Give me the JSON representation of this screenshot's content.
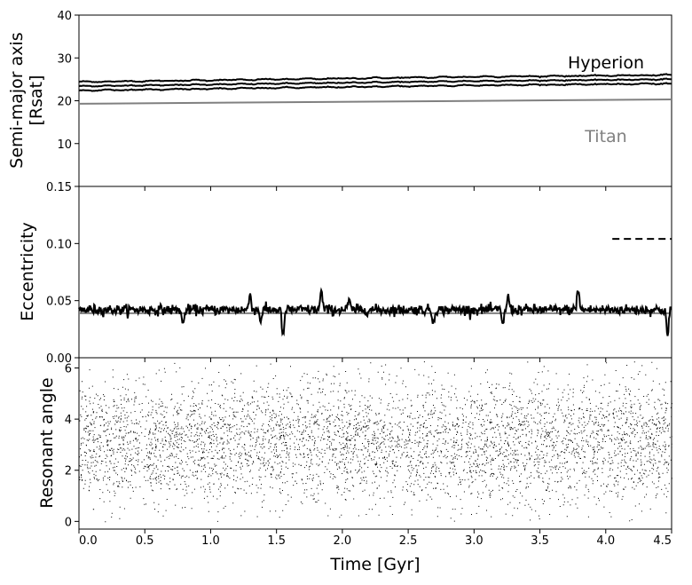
{
  "chart_data": [
    {
      "type": "line",
      "panel": "top",
      "ylabel_line1": "Semi-major axis",
      "ylabel_line2": "[Rsat]",
      "xlim": [
        0.0,
        4.5
      ],
      "ylim": [
        0,
        40
      ],
      "yticks": [
        "10",
        "20",
        "30",
        "40"
      ],
      "grid": false,
      "series": [
        {
          "name": "Hyperion",
          "color": "#000000",
          "style": "solid",
          "x": [
            0.0,
            1.5,
            3.0,
            4.5
          ],
          "center": [
            23.4,
            24.0,
            24.6,
            25.0
          ],
          "band_halfwidth": 1.0
        },
        {
          "name": "Titan",
          "color": "#808080",
          "style": "solid",
          "x": [
            0.0,
            4.5
          ],
          "y": [
            19.3,
            20.3
          ]
        }
      ]
    },
    {
      "type": "line",
      "panel": "middle",
      "ylabel": "Eccentricity",
      "xlim": [
        0.0,
        4.5
      ],
      "ylim": [
        0.0,
        0.15
      ],
      "yticks": [
        "0.00",
        "0.05",
        "0.10",
        "0.15"
      ],
      "grid": false,
      "series": [
        {
          "name": "Hyperion",
          "color": "#000000",
          "style": "solid",
          "mean": 0.042,
          "spikes": [
            [
              0.79,
              -0.014
            ],
            [
              1.3,
              0.014
            ],
            [
              1.38,
              -0.009
            ],
            [
              1.55,
              -0.024
            ],
            [
              1.84,
              0.016
            ],
            [
              2.05,
              0.008
            ],
            [
              2.69,
              -0.012
            ],
            [
              3.22,
              -0.012
            ],
            [
              3.26,
              0.012
            ],
            [
              3.79,
              0.018
            ],
            [
              4.47,
              -0.023
            ]
          ]
        },
        {
          "name": "Titan",
          "color": "#808080",
          "style": "solid",
          "x": [
            0.0,
            4.5
          ],
          "y": [
            0.039,
            0.039
          ]
        },
        {
          "name": "reference",
          "color": "#000000",
          "style": "dashed",
          "x": [
            4.05,
            4.5
          ],
          "y": [
            0.104,
            0.104
          ]
        }
      ]
    },
    {
      "type": "scatter",
      "panel": "bottom",
      "ylabel": "Resonant angle",
      "xlabel": "Time [Gyr]",
      "xlim": [
        0.0,
        4.5
      ],
      "ylim": [
        -0.3,
        6.4
      ],
      "yticks": [
        "0",
        "2",
        "4",
        "6"
      ],
      "xticks": [
        "0.0",
        "0.5",
        "1.0",
        "1.5",
        "2.0",
        "2.5",
        "3.0",
        "3.5",
        "4.0",
        "4.5"
      ],
      "grid": false,
      "points_center": 3.1,
      "points_spread": 1.2,
      "points_count": 6500
    }
  ],
  "labels": {
    "hyperion": "Hyperion",
    "titan": "Titan"
  }
}
